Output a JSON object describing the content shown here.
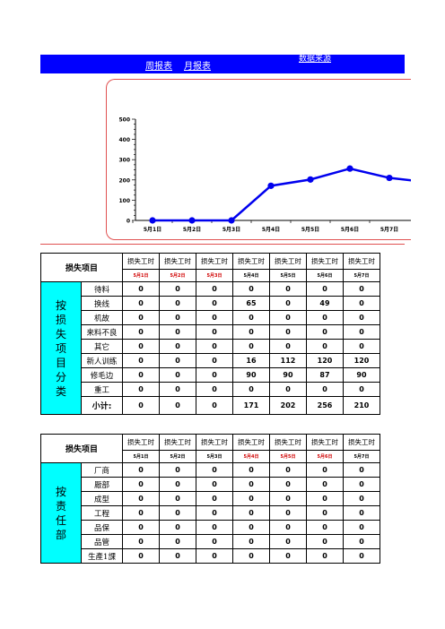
{
  "nav": {
    "week_report": "周报表",
    "month_report": "月报表",
    "data_source": "数据来源"
  },
  "chart_data": {
    "type": "line",
    "categories": [
      "5月1日",
      "5月2日",
      "5月3日",
      "5月4日",
      "5月5日",
      "5月6日",
      "5月7日"
    ],
    "series": [
      {
        "values": [
          0,
          0,
          0,
          171,
          202,
          256,
          210
        ]
      }
    ],
    "yticks": [
      0,
      100,
      200,
      300,
      400,
      500
    ],
    "ylim": [
      0,
      500
    ],
    "title": "",
    "xlabel": "",
    "ylabel": "",
    "line_color": "#0000ee",
    "grid": false
  },
  "table1": {
    "title": "损失项目",
    "col_header": "损失工时",
    "dates": [
      "5月1日",
      "5月2日",
      "5月3日",
      "5月4日",
      "5月5日",
      "5月6日",
      "5月7日"
    ],
    "date_red": [
      true,
      true,
      true,
      false,
      false,
      false,
      false
    ],
    "category": "按损失项目分类",
    "rows": [
      {
        "label": "待料",
        "values": [
          "0",
          "0",
          "0",
          "0",
          "0",
          "0",
          "0"
        ]
      },
      {
        "label": "换线",
        "values": [
          "0",
          "0",
          "0",
          "65",
          "0",
          "49",
          "0"
        ]
      },
      {
        "label": "机故",
        "values": [
          "0",
          "0",
          "0",
          "0",
          "0",
          "0",
          "0"
        ]
      },
      {
        "label": "来料不良",
        "values": [
          "0",
          "0",
          "0",
          "0",
          "0",
          "0",
          "0"
        ]
      },
      {
        "label": "其它",
        "values": [
          "0",
          "0",
          "0",
          "0",
          "0",
          "0",
          "0"
        ]
      },
      {
        "label": "新人训练",
        "values": [
          "0",
          "0",
          "0",
          "16",
          "112",
          "120",
          "120"
        ]
      },
      {
        "label": "修毛边",
        "values": [
          "0",
          "0",
          "0",
          "90",
          "90",
          "87",
          "90"
        ]
      },
      {
        "label": "重工",
        "values": [
          "0",
          "0",
          "0",
          "0",
          "0",
          "0",
          "0"
        ]
      }
    ],
    "subtotal_label": "小计:",
    "subtotal": [
      "0",
      "0",
      "0",
      "171",
      "202",
      "256",
      "210"
    ]
  },
  "table2": {
    "title": "损失项目",
    "col_header": "损失工时",
    "dates": [
      "5月1日",
      "5月2日",
      "5月3日",
      "5月4日",
      "5月5日",
      "5月6日",
      "5月7日"
    ],
    "date_red": [
      false,
      false,
      false,
      true,
      true,
      true,
      false
    ],
    "category": "按责任部",
    "rows": [
      {
        "label": "厂商",
        "values": [
          "0",
          "0",
          "0",
          "0",
          "0",
          "0",
          "0"
        ]
      },
      {
        "label": "厰部",
        "values": [
          "0",
          "0",
          "0",
          "0",
          "0",
          "0",
          "0"
        ]
      },
      {
        "label": "成型",
        "values": [
          "0",
          "0",
          "0",
          "0",
          "0",
          "0",
          "0"
        ]
      },
      {
        "label": "工程",
        "values": [
          "0",
          "0",
          "0",
          "0",
          "0",
          "0",
          "0"
        ]
      },
      {
        "label": "品保",
        "values": [
          "0",
          "0",
          "0",
          "0",
          "0",
          "0",
          "0"
        ]
      },
      {
        "label": "品管",
        "values": [
          "0",
          "0",
          "0",
          "0",
          "0",
          "0",
          "0"
        ]
      },
      {
        "label": "生產1課",
        "values": [
          "0",
          "0",
          "0",
          "0",
          "0",
          "0",
          "0"
        ]
      }
    ]
  }
}
